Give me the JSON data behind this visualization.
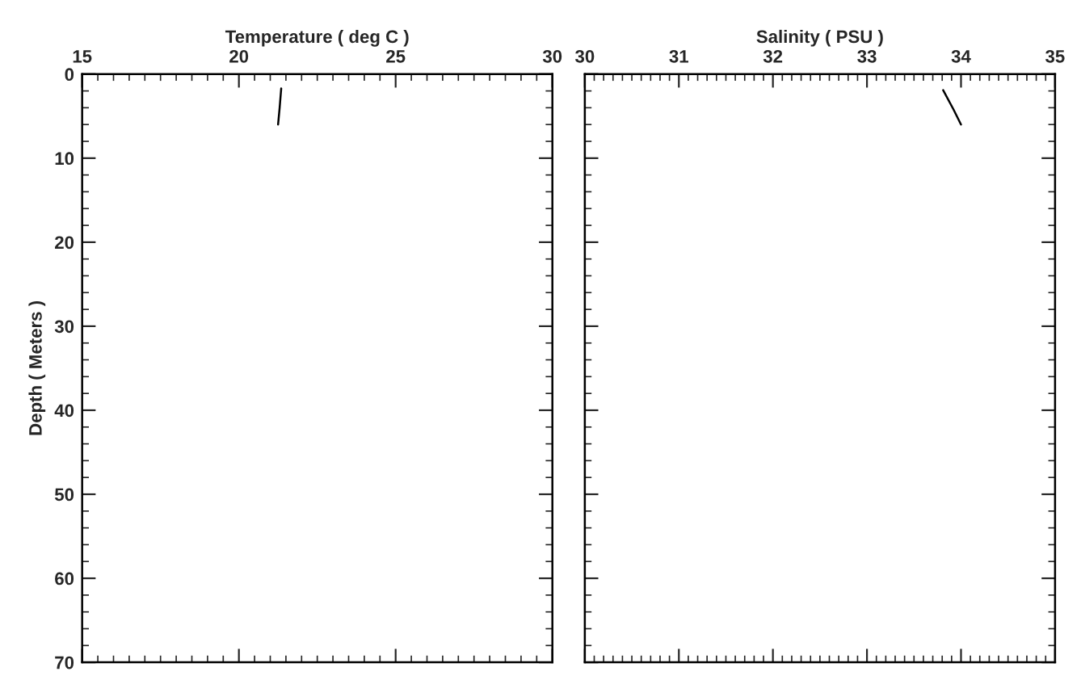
{
  "chart_data": [
    {
      "type": "line",
      "xlabel": "Temperature ( deg C )",
      "ylabel": "Depth ( Meters )",
      "xlim": [
        15,
        30
      ],
      "xticks": [
        15,
        20,
        25,
        30
      ],
      "ylim": [
        70,
        0
      ],
      "yticks": [
        0,
        10,
        20,
        30,
        40,
        50,
        60,
        70
      ],
      "grid": false,
      "legend": false,
      "series": [
        {
          "color": "#000000",
          "x": [
            21.35,
            21.3,
            21.25
          ],
          "values": [
            1.7,
            4.0,
            6.0
          ]
        }
      ]
    },
    {
      "type": "line",
      "xlabel": "Salinity ( PSU )",
      "xlim": [
        30,
        35
      ],
      "xticks": [
        30,
        31,
        32,
        33,
        34,
        35
      ],
      "ylim": [
        70,
        0
      ],
      "yticks": [
        0,
        10,
        20,
        30,
        40,
        50,
        60,
        70
      ],
      "grid": false,
      "legend": false,
      "tick_labels": "x",
      "series": [
        {
          "color": "#000000",
          "x": [
            33.81,
            33.92,
            34.0
          ],
          "values": [
            1.9,
            4.2,
            6.0
          ]
        }
      ]
    }
  ]
}
